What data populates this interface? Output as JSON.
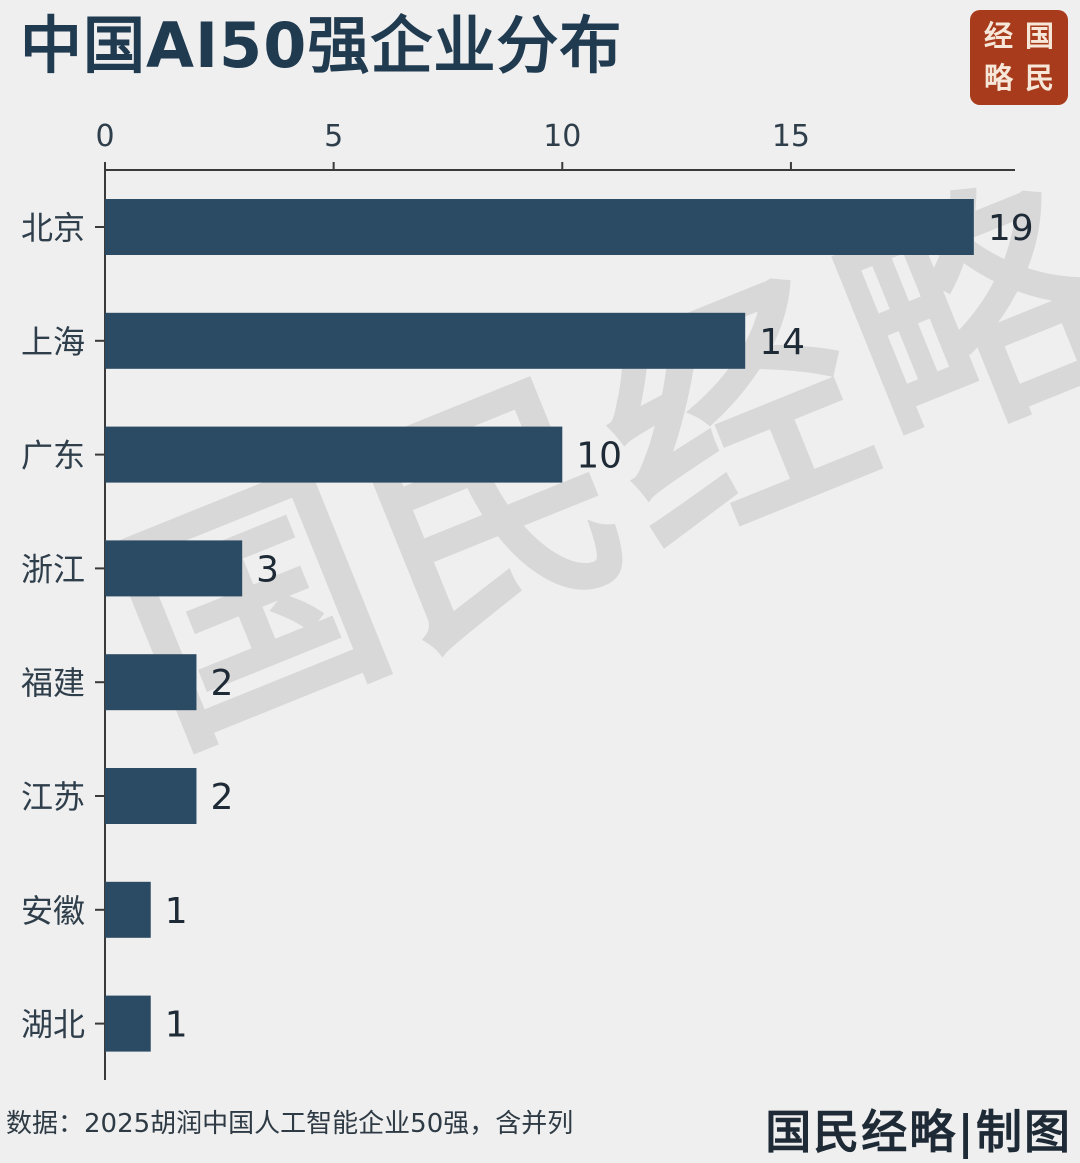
{
  "title": "中国AI50强企业分布",
  "logo": {
    "chars": [
      "经",
      "国",
      "略",
      "民"
    ],
    "bg_color": "#a83b1b"
  },
  "watermark": "国民经略",
  "chart_data": {
    "type": "bar",
    "orientation": "horizontal",
    "categories": [
      "北京",
      "上海",
      "广东",
      "浙江",
      "福建",
      "江苏",
      "安徽",
      "湖北"
    ],
    "values": [
      19,
      14,
      10,
      3,
      2,
      2,
      1,
      1
    ],
    "x_ticks": [
      0,
      5,
      10,
      15
    ],
    "xlim": [
      0,
      19.9
    ],
    "axis_position": "top",
    "bar_color": "#2b4a63",
    "grid": false,
    "data_labels": true
  },
  "footer": {
    "source": "数据：2025胡润中国人工智能企业50强，含并列",
    "credit": "国民经略|制图"
  }
}
